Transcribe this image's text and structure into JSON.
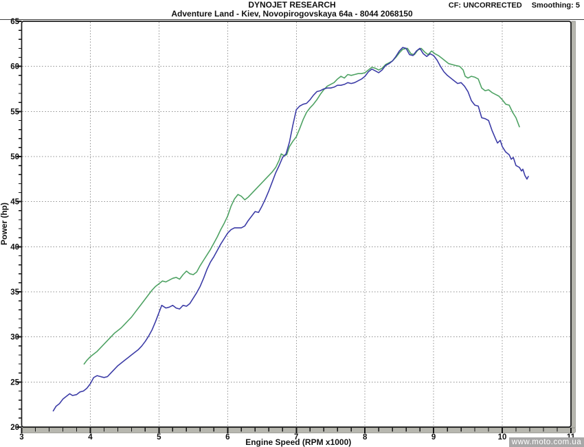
{
  "header": {
    "brand": "DYNOJET RESEARCH",
    "subtitle": "Adventure Land - Kiev, Novopirogovskaya 64a - 8044 2068150",
    "cf": "CF: UNCORRECTED",
    "smoothing": "Smoothing: 5"
  },
  "watermark": "www.moto.com.ua",
  "colors": {
    "frame": "#1a1a1a",
    "grid": "#8f8f8f",
    "axis_bar": "#b7b7af",
    "axis_bar_edge": "#83837c",
    "tick": "#111111",
    "label": "#111111",
    "watermark_bg": "#a8a8a8",
    "watermark_text": "#ffffff",
    "series_green": "#4ea263",
    "series_blue": "#3b3ba6"
  },
  "chart_data": {
    "type": "line",
    "title": "",
    "xlabel": "Engine Speed (RPM x1000)",
    "ylabel": "Power (hp)",
    "xlim": [
      3,
      11
    ],
    "ylim": [
      20,
      65
    ],
    "x_ticks": [
      3,
      4,
      5,
      6,
      7,
      8,
      9,
      10,
      11
    ],
    "y_ticks": [
      20,
      25,
      30,
      35,
      40,
      45,
      50,
      55,
      60,
      65
    ],
    "x_minor_step": 0.2,
    "y_minor_step": 1,
    "vertical_gridlines": [
      4,
      5,
      6,
      7,
      8,
      9,
      10
    ],
    "horizontal_gridlines": [
      25,
      30,
      35,
      40,
      45,
      50,
      55,
      60
    ],
    "grid_style": "dotted",
    "legend": "none",
    "series": [
      {
        "name": "run-green",
        "color_key": "series_green",
        "peak_hp": 62.0,
        "peak_rpm": 8.8,
        "points": [
          [
            3.91,
            27.0
          ],
          [
            3.95,
            27.4
          ],
          [
            4.0,
            27.8
          ],
          [
            4.05,
            28.1
          ],
          [
            4.1,
            28.4
          ],
          [
            4.15,
            28.8
          ],
          [
            4.2,
            29.2
          ],
          [
            4.25,
            29.6
          ],
          [
            4.3,
            30.0
          ],
          [
            4.35,
            30.4
          ],
          [
            4.4,
            30.7
          ],
          [
            4.45,
            31.0
          ],
          [
            4.5,
            31.4
          ],
          [
            4.55,
            31.8
          ],
          [
            4.6,
            32.2
          ],
          [
            4.65,
            32.7
          ],
          [
            4.7,
            33.2
          ],
          [
            4.75,
            33.7
          ],
          [
            4.8,
            34.2
          ],
          [
            4.85,
            34.7
          ],
          [
            4.9,
            35.2
          ],
          [
            4.95,
            35.6
          ],
          [
            5.0,
            35.9
          ],
          [
            5.05,
            36.2
          ],
          [
            5.1,
            36.1
          ],
          [
            5.15,
            36.3
          ],
          [
            5.2,
            36.5
          ],
          [
            5.25,
            36.6
          ],
          [
            5.3,
            36.4
          ],
          [
            5.35,
            36.9
          ],
          [
            5.4,
            37.3
          ],
          [
            5.45,
            37.0
          ],
          [
            5.5,
            36.9
          ],
          [
            5.55,
            37.2
          ],
          [
            5.6,
            37.9
          ],
          [
            5.65,
            38.5
          ],
          [
            5.7,
            39.1
          ],
          [
            5.75,
            39.7
          ],
          [
            5.8,
            40.4
          ],
          [
            5.85,
            41.1
          ],
          [
            5.9,
            41.9
          ],
          [
            5.95,
            42.6
          ],
          [
            6.0,
            43.4
          ],
          [
            6.05,
            44.5
          ],
          [
            6.1,
            45.3
          ],
          [
            6.15,
            45.8
          ],
          [
            6.2,
            45.6
          ],
          [
            6.25,
            45.2
          ],
          [
            6.3,
            45.5
          ],
          [
            6.35,
            45.9
          ],
          [
            6.4,
            46.3
          ],
          [
            6.45,
            46.7
          ],
          [
            6.5,
            47.1
          ],
          [
            6.55,
            47.5
          ],
          [
            6.6,
            47.9
          ],
          [
            6.65,
            48.3
          ],
          [
            6.7,
            48.8
          ],
          [
            6.75,
            49.6
          ],
          [
            6.78,
            50.3
          ],
          [
            6.82,
            50.1
          ],
          [
            6.86,
            50.2
          ],
          [
            6.9,
            51.1
          ],
          [
            6.95,
            51.7
          ],
          [
            7.0,
            52.2
          ],
          [
            7.05,
            53.1
          ],
          [
            7.1,
            54.1
          ],
          [
            7.15,
            54.9
          ],
          [
            7.2,
            55.4
          ],
          [
            7.25,
            55.8
          ],
          [
            7.3,
            56.3
          ],
          [
            7.35,
            56.9
          ],
          [
            7.4,
            57.4
          ],
          [
            7.45,
            57.8
          ],
          [
            7.5,
            58.0
          ],
          [
            7.55,
            58.2
          ],
          [
            7.6,
            58.6
          ],
          [
            7.65,
            58.9
          ],
          [
            7.7,
            58.7
          ],
          [
            7.75,
            59.1
          ],
          [
            7.8,
            59.0
          ],
          [
            7.85,
            59.1
          ],
          [
            7.9,
            59.2
          ],
          [
            7.95,
            59.2
          ],
          [
            8.0,
            59.3
          ],
          [
            8.05,
            59.6
          ],
          [
            8.1,
            59.9
          ],
          [
            8.15,
            59.8
          ],
          [
            8.2,
            59.6
          ],
          [
            8.25,
            59.8
          ],
          [
            8.3,
            60.2
          ],
          [
            8.35,
            60.4
          ],
          [
            8.4,
            60.6
          ],
          [
            8.45,
            61.0
          ],
          [
            8.5,
            61.5
          ],
          [
            8.55,
            61.9
          ],
          [
            8.62,
            62.0
          ],
          [
            8.67,
            61.4
          ],
          [
            8.72,
            61.3
          ],
          [
            8.77,
            61.8
          ],
          [
            8.82,
            62.0
          ],
          [
            8.87,
            61.6
          ],
          [
            8.92,
            61.3
          ],
          [
            8.97,
            61.7
          ],
          [
            9.02,
            61.4
          ],
          [
            9.07,
            61.2
          ],
          [
            9.12,
            60.9
          ],
          [
            9.17,
            60.6
          ],
          [
            9.22,
            60.3
          ],
          [
            9.27,
            60.2
          ],
          [
            9.32,
            60.1
          ],
          [
            9.38,
            60.0
          ],
          [
            9.43,
            59.6
          ],
          [
            9.46,
            58.9
          ],
          [
            9.5,
            58.7
          ],
          [
            9.55,
            58.9
          ],
          [
            9.6,
            58.8
          ],
          [
            9.65,
            58.6
          ],
          [
            9.7,
            57.6
          ],
          [
            9.75,
            57.3
          ],
          [
            9.8,
            57.4
          ],
          [
            9.85,
            57.1
          ],
          [
            9.9,
            56.9
          ],
          [
            9.95,
            56.7
          ],
          [
            10.0,
            56.3
          ],
          [
            10.05,
            55.8
          ],
          [
            10.1,
            55.7
          ],
          [
            10.15,
            54.9
          ],
          [
            10.2,
            54.3
          ],
          [
            10.25,
            53.3
          ]
        ]
      },
      {
        "name": "run-blue",
        "color_key": "series_blue",
        "peak_hp": 62.1,
        "peak_rpm": 8.55,
        "points": [
          [
            3.46,
            21.8
          ],
          [
            3.5,
            22.3
          ],
          [
            3.55,
            22.6
          ],
          [
            3.6,
            23.1
          ],
          [
            3.65,
            23.4
          ],
          [
            3.7,
            23.7
          ],
          [
            3.74,
            23.5
          ],
          [
            3.8,
            23.6
          ],
          [
            3.85,
            23.9
          ],
          [
            3.9,
            24.0
          ],
          [
            3.95,
            24.3
          ],
          [
            4.0,
            24.8
          ],
          [
            4.05,
            25.5
          ],
          [
            4.1,
            25.7
          ],
          [
            4.15,
            25.6
          ],
          [
            4.2,
            25.5
          ],
          [
            4.25,
            25.6
          ],
          [
            4.3,
            26.0
          ],
          [
            4.35,
            26.4
          ],
          [
            4.4,
            26.8
          ],
          [
            4.45,
            27.1
          ],
          [
            4.5,
            27.4
          ],
          [
            4.55,
            27.7
          ],
          [
            4.6,
            28.0
          ],
          [
            4.65,
            28.3
          ],
          [
            4.7,
            28.6
          ],
          [
            4.75,
            29.0
          ],
          [
            4.8,
            29.5
          ],
          [
            4.85,
            30.1
          ],
          [
            4.9,
            30.8
          ],
          [
            4.95,
            31.7
          ],
          [
            5.0,
            32.7
          ],
          [
            5.04,
            33.5
          ],
          [
            5.1,
            33.2
          ],
          [
            5.15,
            33.3
          ],
          [
            5.2,
            33.5
          ],
          [
            5.25,
            33.2
          ],
          [
            5.3,
            33.1
          ],
          [
            5.35,
            33.5
          ],
          [
            5.4,
            33.4
          ],
          [
            5.45,
            33.7
          ],
          [
            5.5,
            34.3
          ],
          [
            5.55,
            34.9
          ],
          [
            5.6,
            35.6
          ],
          [
            5.65,
            36.5
          ],
          [
            5.7,
            37.5
          ],
          [
            5.75,
            38.3
          ],
          [
            5.8,
            38.9
          ],
          [
            5.85,
            39.6
          ],
          [
            5.9,
            40.3
          ],
          [
            5.95,
            40.9
          ],
          [
            6.0,
            41.5
          ],
          [
            6.05,
            41.9
          ],
          [
            6.1,
            42.1
          ],
          [
            6.15,
            42.1
          ],
          [
            6.2,
            42.1
          ],
          [
            6.25,
            42.3
          ],
          [
            6.3,
            42.9
          ],
          [
            6.35,
            43.4
          ],
          [
            6.4,
            43.9
          ],
          [
            6.45,
            43.8
          ],
          [
            6.5,
            44.5
          ],
          [
            6.55,
            45.3
          ],
          [
            6.6,
            46.2
          ],
          [
            6.65,
            47.2
          ],
          [
            6.7,
            48.2
          ],
          [
            6.75,
            49.0
          ],
          [
            6.8,
            49.9
          ],
          [
            6.85,
            50.3
          ],
          [
            6.9,
            51.6
          ],
          [
            6.95,
            53.5
          ],
          [
            7.0,
            55.2
          ],
          [
            7.05,
            55.6
          ],
          [
            7.1,
            55.8
          ],
          [
            7.15,
            55.9
          ],
          [
            7.2,
            56.3
          ],
          [
            7.25,
            56.8
          ],
          [
            7.3,
            57.2
          ],
          [
            7.35,
            57.3
          ],
          [
            7.4,
            57.5
          ],
          [
            7.45,
            57.6
          ],
          [
            7.5,
            57.6
          ],
          [
            7.55,
            57.7
          ],
          [
            7.6,
            57.9
          ],
          [
            7.65,
            57.9
          ],
          [
            7.7,
            58.0
          ],
          [
            7.75,
            58.2
          ],
          [
            7.8,
            58.1
          ],
          [
            7.85,
            58.2
          ],
          [
            7.9,
            58.4
          ],
          [
            7.95,
            58.6
          ],
          [
            8.0,
            58.9
          ],
          [
            8.05,
            59.4
          ],
          [
            8.1,
            59.7
          ],
          [
            8.15,
            59.5
          ],
          [
            8.2,
            59.3
          ],
          [
            8.25,
            59.6
          ],
          [
            8.3,
            60.1
          ],
          [
            8.35,
            60.3
          ],
          [
            8.4,
            60.6
          ],
          [
            8.45,
            61.1
          ],
          [
            8.5,
            61.7
          ],
          [
            8.55,
            62.1
          ],
          [
            8.6,
            62.0
          ],
          [
            8.65,
            61.3
          ],
          [
            8.7,
            61.2
          ],
          [
            8.75,
            61.7
          ],
          [
            8.8,
            62.0
          ],
          [
            8.85,
            61.4
          ],
          [
            8.9,
            61.1
          ],
          [
            8.95,
            61.4
          ],
          [
            9.0,
            61.2
          ],
          [
            9.05,
            60.7
          ],
          [
            9.1,
            60.0
          ],
          [
            9.15,
            59.4
          ],
          [
            9.2,
            59.0
          ],
          [
            9.25,
            58.7
          ],
          [
            9.3,
            58.4
          ],
          [
            9.35,
            58.1
          ],
          [
            9.4,
            58.2
          ],
          [
            9.45,
            57.8
          ],
          [
            9.5,
            57.2
          ],
          [
            9.55,
            56.2
          ],
          [
            9.6,
            55.7
          ],
          [
            9.65,
            55.6
          ],
          [
            9.7,
            54.3
          ],
          [
            9.75,
            54.2
          ],
          [
            9.8,
            54.0
          ],
          [
            9.85,
            52.9
          ],
          [
            9.9,
            52.0
          ],
          [
            9.93,
            51.5
          ],
          [
            9.97,
            51.8
          ],
          [
            10.0,
            51.1
          ],
          [
            10.05,
            50.5
          ],
          [
            10.1,
            50.2
          ],
          [
            10.13,
            49.7
          ],
          [
            10.16,
            49.9
          ],
          [
            10.2,
            49.0
          ],
          [
            10.25,
            48.8
          ],
          [
            10.28,
            48.4
          ],
          [
            10.3,
            48.6
          ],
          [
            10.33,
            47.9
          ],
          [
            10.36,
            47.5
          ],
          [
            10.38,
            47.8
          ]
        ]
      }
    ]
  }
}
